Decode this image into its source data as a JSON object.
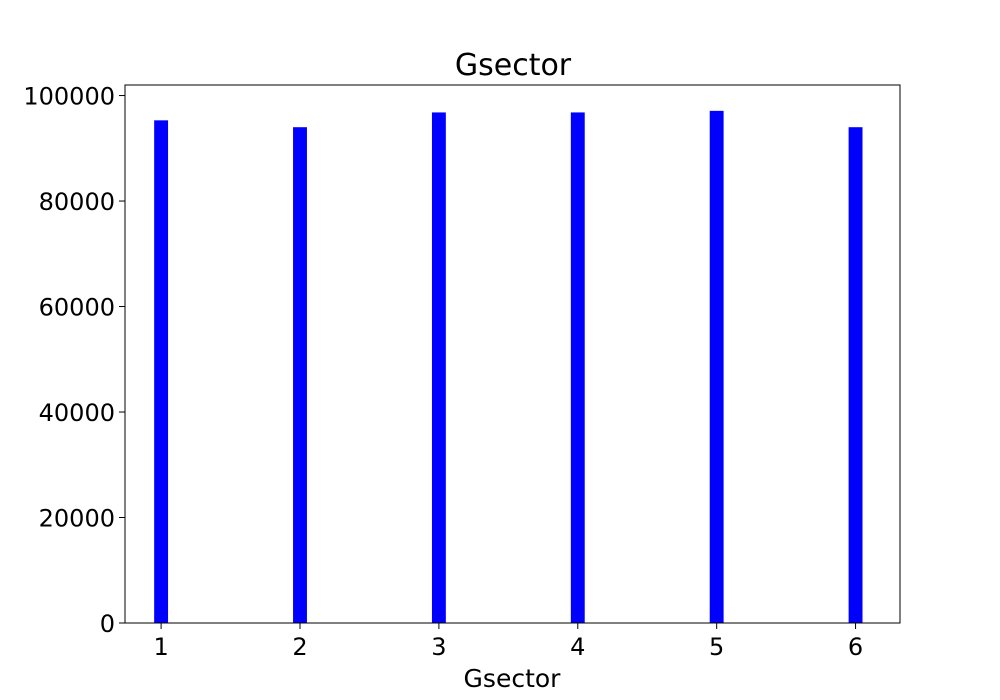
{
  "chart_data": {
    "type": "bar",
    "title": "Gsector",
    "xlabel": "Gsector",
    "ylabel": "",
    "x": [
      1,
      2,
      3,
      4,
      5,
      6
    ],
    "values": [
      95300,
      94000,
      96800,
      96800,
      97100,
      94000
    ],
    "xlim": [
      0.74,
      6.32
    ],
    "ylim": [
      0,
      102000
    ],
    "x_ticks": [
      "1",
      "2",
      "3",
      "4",
      "5",
      "6"
    ],
    "y_ticks": [
      "0",
      "20000",
      "40000",
      "60000",
      "80000",
      "100000"
    ],
    "bar_color": "#0000ff",
    "grid": false,
    "legend": "none"
  }
}
